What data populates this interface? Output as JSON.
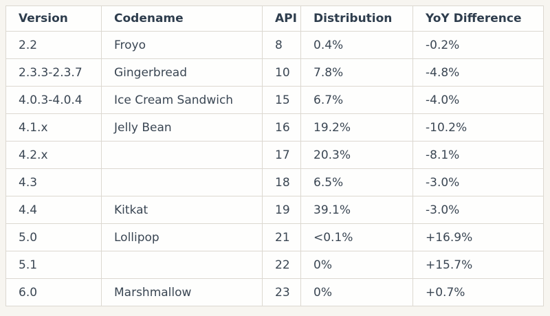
{
  "table": {
    "headers": [
      "Version",
      "Codename",
      "API",
      "Distribution",
      "YoY Difference"
    ],
    "rows": [
      [
        "2.2",
        "Froyo",
        "8",
        "0.4%",
        "-0.2%"
      ],
      [
        "2.3.3-2.3.7",
        "Gingerbread",
        "10",
        "7.8%",
        "-4.8%"
      ],
      [
        "4.0.3-4.0.4",
        "Ice Cream Sandwich",
        "15",
        "6.7%",
        "-4.0%"
      ],
      [
        "4.1.x",
        "Jelly Bean",
        "16",
        "19.2%",
        "-10.2%"
      ],
      [
        "4.2.x",
        "",
        "17",
        "20.3%",
        "-8.1%"
      ],
      [
        "4.3",
        "",
        "18",
        "6.5%",
        "-3.0%"
      ],
      [
        "4.4",
        "Kitkat",
        "19",
        "39.1%",
        "-3.0%"
      ],
      [
        "5.0",
        "Lollipop",
        "21",
        "<0.1%",
        "+16.9%"
      ],
      [
        "5.1",
        "",
        "22",
        "0%",
        "+15.7%"
      ],
      [
        "6.0",
        "Marshmallow",
        "23",
        "0%",
        "+0.7%"
      ]
    ]
  },
  "colors": {
    "page_background": "#f7f5f0",
    "cell_background": "#fefefd",
    "border": "#dcd8d0",
    "header_text": "#2e3d4d",
    "body_text": "#3a4653"
  },
  "chart_data": {
    "type": "table",
    "title": "Android version distribution table",
    "columns": [
      "Version",
      "Codename",
      "API",
      "Distribution",
      "YoY Difference"
    ],
    "rows": [
      {
        "version": "2.2",
        "codename": "Froyo",
        "api": 8,
        "distribution": "0.4%",
        "yoy_difference": "-0.2%"
      },
      {
        "version": "2.3.3-2.3.7",
        "codename": "Gingerbread",
        "api": 10,
        "distribution": "7.8%",
        "yoy_difference": "-4.8%"
      },
      {
        "version": "4.0.3-4.0.4",
        "codename": "Ice Cream Sandwich",
        "api": 15,
        "distribution": "6.7%",
        "yoy_difference": "-4.0%"
      },
      {
        "version": "4.1.x",
        "codename": "Jelly Bean",
        "api": 16,
        "distribution": "19.2%",
        "yoy_difference": "-10.2%"
      },
      {
        "version": "4.2.x",
        "codename": "",
        "api": 17,
        "distribution": "20.3%",
        "yoy_difference": "-8.1%"
      },
      {
        "version": "4.3",
        "codename": "",
        "api": 18,
        "distribution": "6.5%",
        "yoy_difference": "-3.0%"
      },
      {
        "version": "4.4",
        "codename": "Kitkat",
        "api": 19,
        "distribution": "39.1%",
        "yoy_difference": "-3.0%"
      },
      {
        "version": "5.0",
        "codename": "Lollipop",
        "api": 21,
        "distribution": "<0.1%",
        "yoy_difference": "+16.9%"
      },
      {
        "version": "5.1",
        "codename": "",
        "api": 22,
        "distribution": "0%",
        "yoy_difference": "+15.7%"
      },
      {
        "version": "6.0",
        "codename": "Marshmallow",
        "api": 23,
        "distribution": "0%",
        "yoy_difference": "+0.7%"
      }
    ]
  }
}
